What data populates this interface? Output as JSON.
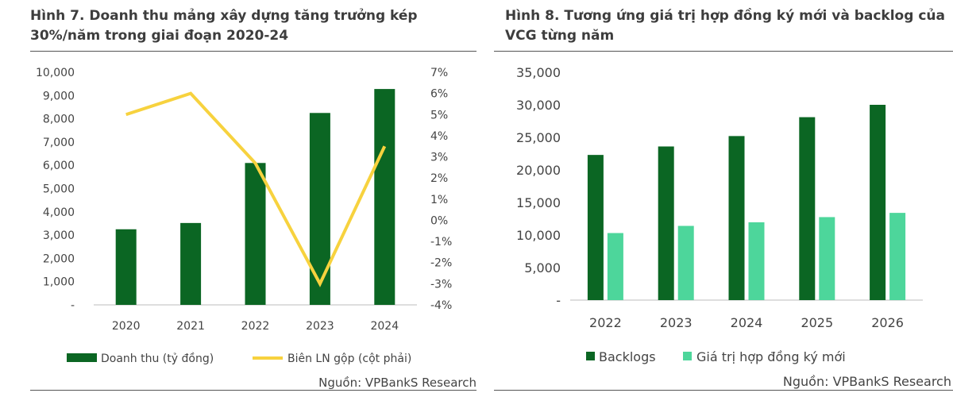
{
  "chart_data": [
    {
      "type": "bar+line",
      "title": "Hình 7. Doanh thu mảng xây dựng tăng trưởng kép 30%/năm trong giai đoạn 2020-24",
      "categories": [
        "2020",
        "2021",
        "2022",
        "2023",
        "2024"
      ],
      "series": [
        {
          "name": "Doanh thu (tỷ đồng)",
          "type": "bar",
          "axis": "left",
          "color": "#0b6623",
          "values": [
            3250,
            3520,
            6100,
            8250,
            9280
          ]
        },
        {
          "name": "Biên LN gộp (cột phải)",
          "type": "line",
          "axis": "right",
          "color": "#f7d23e",
          "values": [
            5.0,
            6.0,
            2.7,
            -3.0,
            3.5
          ]
        }
      ],
      "y_left": {
        "min": 0,
        "max": 10000,
        "ticks": [
          "-",
          "1,000",
          "2,000",
          "3,000",
          "4,000",
          "5,000",
          "6,000",
          "7,000",
          "8,000",
          "9,000",
          "10,000"
        ]
      },
      "y_right": {
        "min": -4,
        "max": 7,
        "ticks": [
          "-4%",
          "-3%",
          "-2%",
          "-1%",
          "0%",
          "1%",
          "2%",
          "3%",
          "4%",
          "5%",
          "6%",
          "7%"
        ]
      },
      "grid": false,
      "legend_position": "bottom",
      "source": "Nguồn: VPBankS Research"
    },
    {
      "type": "bar",
      "title": "Hình 8. Tương ứng giá trị hợp đồng ký mới và backlog của VCG từng năm",
      "categories": [
        "2022",
        "2023",
        "2024",
        "2025",
        "2026"
      ],
      "series": [
        {
          "name": "Backlogs",
          "color": "#0b6623",
          "values": [
            22300,
            23600,
            25200,
            28100,
            30000
          ]
        },
        {
          "name": "Giá trị hợp đồng ký mới",
          "color": "#4dd69b",
          "values": [
            10300,
            11400,
            11950,
            12750,
            13400
          ]
        }
      ],
      "y": {
        "min": 0,
        "max": 35000,
        "ticks": [
          "-",
          "5,000",
          "10,000",
          "15,000",
          "20,000",
          "25,000",
          "30,000",
          "35,000"
        ]
      },
      "grid": false,
      "legend_position": "bottom",
      "source": "Nguồn: VPBankS Research"
    }
  ]
}
